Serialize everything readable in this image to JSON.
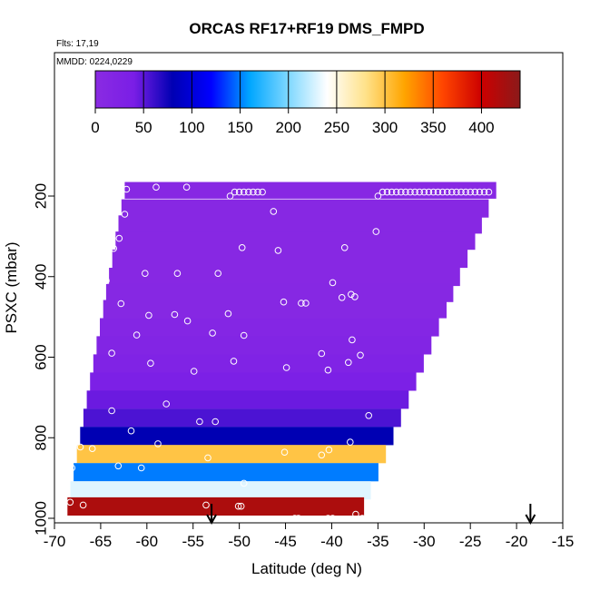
{
  "chart_data": {
    "type": "heatmap",
    "title": "ORCAS RF17+RF19 DMS_FMPD",
    "subtitle_flights": "Flts: 17,19",
    "subtitle_dates": "MMDD: 0224,0229",
    "xlabel": "Latitude (deg N)",
    "ylabel": "PSXC (mbar)",
    "xlim": [
      -70,
      -15
    ],
    "ylim": [
      1000,
      100
    ],
    "y_inverted": true,
    "x_ticks": [
      "-70",
      "-65",
      "-60",
      "-55",
      "-50",
      "-45",
      "-40",
      "-35",
      "-30",
      "-25",
      "-20",
      "-15"
    ],
    "y_ticks": [
      "200",
      "400",
      "600",
      "800",
      "1000"
    ],
    "colorbar": {
      "range": [
        0,
        440
      ],
      "ticks": [
        "0",
        "50",
        "100",
        "150",
        "200",
        "250",
        "300",
        "350",
        "400"
      ],
      "colors": [
        "#8a2be2",
        "#7a1ee6",
        "#0000b3",
        "#0000ff",
        "#00a6ff",
        "#7fd8ff",
        "#ffffff",
        "#ffe28a",
        "#ffa500",
        "#ff4500",
        "#cc0000",
        "#8b1a1a"
      ]
    },
    "layers": [
      {
        "p": 185,
        "value": 8
      },
      {
        "p": 230,
        "value": 8
      },
      {
        "p": 270,
        "value": 8
      },
      {
        "p": 310,
        "value": 8
      },
      {
        "p": 355,
        "value": 8
      },
      {
        "p": 400,
        "value": 8
      },
      {
        "p": 440,
        "value": 10
      },
      {
        "p": 480,
        "value": 10
      },
      {
        "p": 525,
        "value": 15
      },
      {
        "p": 570,
        "value": 20
      },
      {
        "p": 615,
        "value": 25
      },
      {
        "p": 660,
        "value": 35
      },
      {
        "p": 705,
        "value": 45
      },
      {
        "p": 750,
        "value": 55
      },
      {
        "p": 795,
        "value": 80
      },
      {
        "p": 840,
        "value": 300
      },
      {
        "p": 885,
        "value": 150
      },
      {
        "p": 930,
        "value": 230
      },
      {
        "p": 970,
        "value": 420
      }
    ],
    "flight_arrows_lat": [
      -53,
      -18.5
    ],
    "sample_points": [
      [
        -62.2,
        183
      ],
      [
        -59.0,
        178
      ],
      [
        -55.7,
        178
      ],
      [
        -51.0,
        200
      ],
      [
        -50.5,
        190
      ],
      [
        -50.0,
        190
      ],
      [
        -49.5,
        190
      ],
      [
        -49.0,
        190
      ],
      [
        -48.5,
        190
      ],
      [
        -48.0,
        190
      ],
      [
        -47.5,
        190
      ],
      [
        -34.5,
        190
      ],
      [
        -34.0,
        190
      ],
      [
        -33.5,
        190
      ],
      [
        -33.0,
        190
      ],
      [
        -32.5,
        190
      ],
      [
        -32.0,
        190
      ],
      [
        -31.5,
        190
      ],
      [
        -31.0,
        190
      ],
      [
        -30.5,
        190
      ],
      [
        -30.0,
        190
      ],
      [
        -29.5,
        190
      ],
      [
        -29.0,
        190
      ],
      [
        -28.5,
        190
      ],
      [
        -28.0,
        190
      ],
      [
        -27.5,
        190
      ],
      [
        -27.0,
        190
      ],
      [
        -26.5,
        190
      ],
      [
        -26.0,
        190
      ],
      [
        -25.5,
        190
      ],
      [
        -25.0,
        190
      ],
      [
        -24.5,
        190
      ],
      [
        -24.0,
        190
      ],
      [
        -23.5,
        190
      ],
      [
        -23.0,
        190
      ],
      [
        -35.0,
        200
      ],
      [
        -62.4,
        245
      ],
      [
        -46.3,
        238
      ],
      [
        -35.2,
        288
      ],
      [
        -63.6,
        330
      ],
      [
        -63.0,
        305
      ],
      [
        -49.7,
        328
      ],
      [
        -45.8,
        335
      ],
      [
        -38.6,
        328
      ],
      [
        -66.3,
        345
      ],
      [
        -65.1,
        302
      ],
      [
        -60.2,
        392
      ],
      [
        -56.7,
        392
      ],
      [
        -52.3,
        392
      ],
      [
        -64.4,
        410
      ],
      [
        -66.8,
        467
      ],
      [
        -62.8,
        467
      ],
      [
        -45.2,
        463
      ],
      [
        -43.3,
        466
      ],
      [
        -42.8,
        466
      ],
      [
        -38.9,
        452
      ],
      [
        -37.9,
        444
      ],
      [
        -59.8,
        496
      ],
      [
        -57.0,
        494
      ],
      [
        -55.6,
        510
      ],
      [
        -51.2,
        492
      ],
      [
        -49.5,
        546
      ],
      [
        -61.1,
        545
      ],
      [
        -52.9,
        540
      ],
      [
        -37.8,
        557
      ],
      [
        -37.5,
        450
      ],
      [
        -39.9,
        415
      ],
      [
        -66.9,
        595
      ],
      [
        -63.8,
        590
      ],
      [
        -59.6,
        615
      ],
      [
        -54.9,
        635
      ],
      [
        -50.6,
        610
      ],
      [
        -44.9,
        626
      ],
      [
        -41.1,
        591
      ],
      [
        -40.4,
        632
      ],
      [
        -38.2,
        613
      ],
      [
        -36.9,
        595
      ],
      [
        -67.6,
        716
      ],
      [
        -63.8,
        733
      ],
      [
        -57.9,
        716
      ],
      [
        -54.3,
        760
      ],
      [
        -52.6,
        760
      ],
      [
        -36.0,
        745
      ],
      [
        -67.9,
        817
      ],
      [
        -67.2,
        823
      ],
      [
        -65.9,
        827
      ],
      [
        -61.7,
        783
      ],
      [
        -58.8,
        815
      ],
      [
        -45.1,
        836
      ],
      [
        -41.1,
        843
      ],
      [
        -40.3,
        830
      ],
      [
        -38.0,
        811
      ],
      [
        -68.1,
        875
      ],
      [
        -63.1,
        870
      ],
      [
        -60.6,
        875
      ],
      [
        -53.4,
        850
      ],
      [
        -49.5,
        913
      ],
      [
        -68.3,
        960
      ],
      [
        -66.9,
        967
      ],
      [
        -53.6,
        967
      ],
      [
        -50.1,
        970
      ],
      [
        -49.8,
        970
      ],
      [
        -44.0,
        1000
      ],
      [
        -43.6,
        1000
      ],
      [
        -40.4,
        1000
      ],
      [
        -39.9,
        1000
      ],
      [
        -36.7,
        1000
      ],
      [
        -37.4,
        990
      ]
    ]
  }
}
